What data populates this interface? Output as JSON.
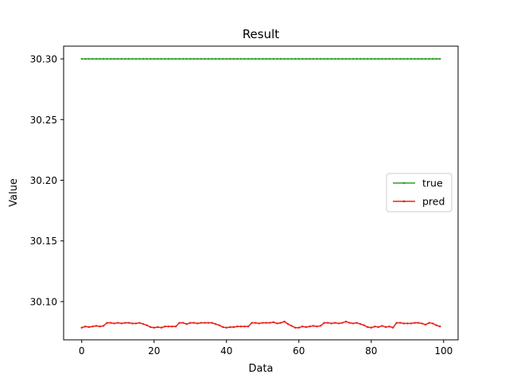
{
  "chart_data": {
    "type": "line",
    "title": "Result",
    "xlabel": "Data",
    "ylabel": "Value",
    "xlim": [
      -5,
      104
    ],
    "ylim": [
      30.0685,
      30.3105
    ],
    "xticks": [
      0,
      20,
      40,
      60,
      80,
      100
    ],
    "yticks": [
      30.1,
      30.15,
      30.2,
      30.25,
      30.3
    ],
    "ytick_labels": [
      "30.10",
      "30.15",
      "30.20",
      "30.25",
      "30.30"
    ],
    "grid": false,
    "legend_position": "center-right",
    "series": [
      {
        "name": "true",
        "color": "#2ca02c",
        "marker": "point",
        "values": [
          30.3,
          30.3,
          30.3,
          30.3,
          30.3,
          30.3,
          30.3,
          30.3,
          30.3,
          30.3,
          30.3,
          30.3,
          30.3,
          30.3,
          30.3,
          30.3,
          30.3,
          30.3,
          30.3,
          30.3,
          30.3,
          30.3,
          30.3,
          30.3,
          30.3,
          30.3,
          30.3,
          30.3,
          30.3,
          30.3,
          30.3,
          30.3,
          30.3,
          30.3,
          30.3,
          30.3,
          30.3,
          30.3,
          30.3,
          30.3,
          30.3,
          30.3,
          30.3,
          30.3,
          30.3,
          30.3,
          30.3,
          30.3,
          30.3,
          30.3,
          30.3,
          30.3,
          30.3,
          30.3,
          30.3,
          30.3,
          30.3,
          30.3,
          30.3,
          30.3,
          30.3,
          30.3,
          30.3,
          30.3,
          30.3,
          30.3,
          30.3,
          30.3,
          30.3,
          30.3,
          30.3,
          30.3,
          30.3,
          30.3,
          30.3,
          30.3,
          30.3,
          30.3,
          30.3,
          30.3,
          30.3,
          30.3,
          30.3,
          30.3,
          30.3,
          30.3,
          30.3,
          30.3,
          30.3,
          30.3,
          30.3,
          30.3,
          30.3,
          30.3,
          30.3,
          30.3,
          30.3,
          30.3,
          30.3,
          30.3
        ]
      },
      {
        "name": "pred",
        "color": "#e8201a",
        "marker": "point",
        "values": [
          30.0785,
          30.0795,
          30.079,
          30.0795,
          30.08,
          30.0795,
          30.08,
          30.0825,
          30.0825,
          30.082,
          30.0825,
          30.082,
          30.0825,
          30.0825,
          30.082,
          30.082,
          30.0825,
          30.0815,
          30.0805,
          30.079,
          30.0785,
          30.079,
          30.0785,
          30.0795,
          30.0795,
          30.0795,
          30.0795,
          30.0825,
          30.0825,
          30.0815,
          30.0825,
          30.0825,
          30.082,
          30.0825,
          30.0825,
          30.0825,
          30.0825,
          30.0815,
          30.0805,
          30.079,
          30.0785,
          30.079,
          30.079,
          30.0795,
          30.0795,
          30.0795,
          30.0795,
          30.0825,
          30.0825,
          30.082,
          30.0825,
          30.0825,
          30.0825,
          30.083,
          30.082,
          30.0825,
          30.0835,
          30.0815,
          30.08,
          30.0785,
          30.0785,
          30.0795,
          30.079,
          30.0795,
          30.08,
          30.0795,
          30.08,
          30.0825,
          30.0825,
          30.082,
          30.0825,
          30.082,
          30.0825,
          30.0835,
          30.0825,
          30.082,
          30.0825,
          30.0815,
          30.0805,
          30.079,
          30.0785,
          30.0795,
          30.079,
          30.08,
          30.079,
          30.0795,
          30.0785,
          30.0825,
          30.0825,
          30.082,
          30.082,
          30.082,
          30.0825,
          30.0825,
          30.082,
          30.081,
          30.0825,
          30.082,
          30.0805,
          30.0795
        ]
      }
    ]
  }
}
